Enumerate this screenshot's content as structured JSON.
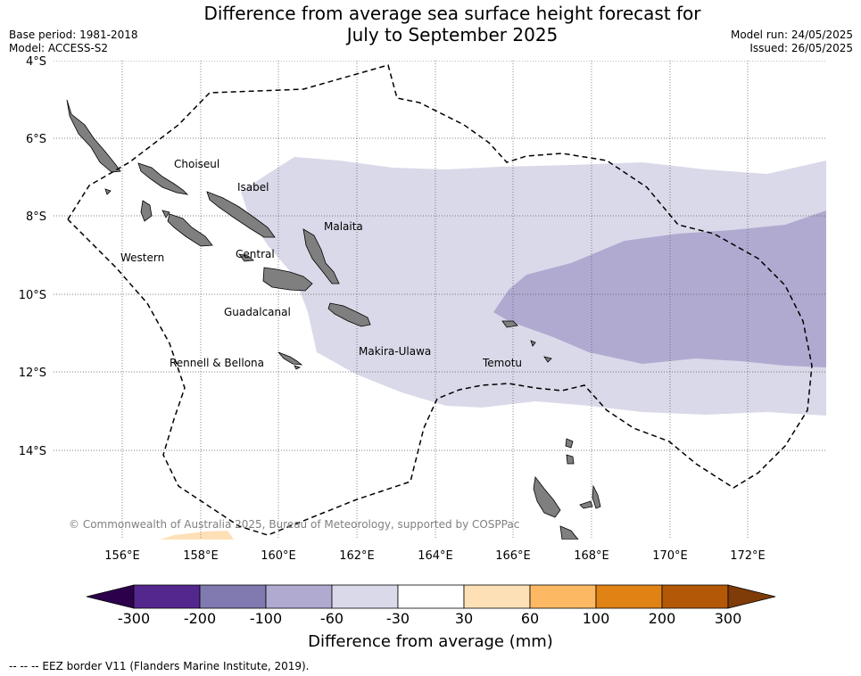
{
  "header": {
    "title_line1": "Difference from average sea surface height forecast for",
    "title_line2": "July to September 2025",
    "base_period": "Base period: 1981-2018",
    "model": "Model: ACCESS-S2",
    "model_run": "Model run: 24/05/2025",
    "issued": "Issued: 26/05/2025"
  },
  "map": {
    "lat_labels": [
      "4°S",
      "6°S",
      "8°S",
      "10°S",
      "12°S",
      "14°S"
    ],
    "lon_labels": [
      "156°E",
      "158°E",
      "160°E",
      "162°E",
      "164°E",
      "166°E",
      "168°E",
      "170°E",
      "172°E"
    ],
    "provinces": [
      "Choiseul",
      "Isabel",
      "Malaita",
      "Western",
      "Central",
      "Guadalcanal",
      "Makira-Ulawa",
      "Rennell & Bellona",
      "Temotu"
    ],
    "copyright": "© Commonwealth of Australia 2025, Bureau of Meteorology, supported by COSPPac"
  },
  "colorbar": {
    "ticks": [
      "-300",
      "-200",
      "-100",
      "-60",
      "-30",
      "30",
      "60",
      "100",
      "200",
      "300"
    ],
    "colors": [
      "#54278f",
      "#807ab1",
      "#b0aad1",
      "#d9d9e9",
      "#ffffff",
      "#fee0b6",
      "#fdb863",
      "#e08214",
      "#b35806"
    ],
    "under_color": "#2d004b",
    "over_color": "#7f3b08",
    "title": "Difference from average (mm)"
  },
  "footnote": "--  --  -- EEZ border V11 (Flanders Marine Institute, 2019)."
}
